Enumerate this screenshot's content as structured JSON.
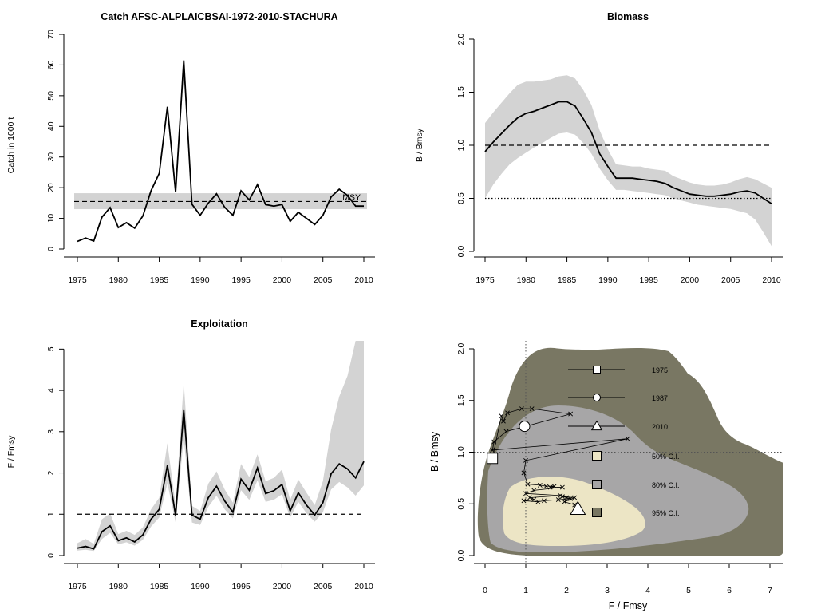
{
  "chart_data": [
    {
      "type": "line",
      "title": "Catch AFSC-ALPLAICBSAI-1972-2010-STACHURA",
      "xlabel": "",
      "ylabel": "Catch in 1000 t",
      "xlim": [
        1975,
        2010
      ],
      "ylim": [
        0,
        70
      ],
      "xticks": [
        1975,
        1980,
        1985,
        1990,
        1995,
        2000,
        2005,
        2010
      ],
      "yticks": [
        0,
        10,
        20,
        30,
        40,
        50,
        60,
        70
      ],
      "x": [
        1975,
        1976,
        1977,
        1978,
        1979,
        1980,
        1981,
        1982,
        1983,
        1984,
        1985,
        1986,
        1987,
        1988,
        1989,
        1990,
        1991,
        1992,
        1993,
        1994,
        1995,
        1996,
        1997,
        1998,
        1999,
        2000,
        2001,
        2002,
        2003,
        2004,
        2005,
        2006,
        2007,
        2008,
        2009,
        2010
      ],
      "series": [
        {
          "values": [
            2.5,
            3.6,
            2.6,
            10.4,
            13.5,
            7.0,
            8.6,
            6.8,
            10.8,
            19.0,
            24.7,
            46.4,
            18.5,
            61.5,
            14.6,
            11.0,
            15.0,
            18.0,
            13.6,
            11.0,
            19.0,
            16.0,
            21.0,
            14.5,
            14.0,
            14.5,
            9.0,
            12.0,
            10.0,
            8.0,
            11.0,
            17.0,
            19.5,
            17.5,
            14.0,
            14.0
          ]
        }
      ],
      "msy": {
        "label": "MSY",
        "value": 15.5,
        "lower": 13.0,
        "upper": 18.2
      }
    },
    {
      "type": "line",
      "title": "Biomass",
      "xlabel": "",
      "ylabel": "B / Bmsy",
      "xlim": [
        1975,
        2010
      ],
      "ylim": [
        0,
        2.0
      ],
      "xticks": [
        1975,
        1980,
        1985,
        1990,
        1995,
        2000,
        2005,
        2010
      ],
      "yticks": [
        "0.0",
        "0.5",
        "1.0",
        "1.5",
        "2.0"
      ],
      "x": [
        1975,
        1976,
        1977,
        1978,
        1979,
        1980,
        1981,
        1982,
        1983,
        1984,
        1985,
        1986,
        1987,
        1988,
        1989,
        1990,
        1991,
        1992,
        1993,
        1994,
        1995,
        1996,
        1997,
        1998,
        1999,
        2000,
        2001,
        2002,
        2003,
        2004,
        2005,
        2006,
        2007,
        2008,
        2009,
        2010
      ],
      "series": [
        {
          "values": [
            0.94,
            1.03,
            1.11,
            1.19,
            1.26,
            1.3,
            1.32,
            1.35,
            1.38,
            1.41,
            1.41,
            1.37,
            1.25,
            1.12,
            0.92,
            0.8,
            0.69,
            0.69,
            0.69,
            0.68,
            0.67,
            0.66,
            0.64,
            0.6,
            0.57,
            0.54,
            0.53,
            0.52,
            0.52,
            0.53,
            0.54,
            0.56,
            0.57,
            0.55,
            0.5,
            0.45
          ]
        }
      ],
      "ci_lower": [
        0.5,
        0.63,
        0.73,
        0.82,
        0.88,
        0.93,
        0.98,
        1.02,
        1.07,
        1.11,
        1.12,
        1.1,
        1.02,
        0.92,
        0.78,
        0.67,
        0.58,
        0.58,
        0.57,
        0.56,
        0.55,
        0.54,
        0.53,
        0.5,
        0.48,
        0.46,
        0.44,
        0.43,
        0.42,
        0.41,
        0.4,
        0.38,
        0.36,
        0.3,
        0.18,
        0.05
      ],
      "ci_upper": [
        1.21,
        1.31,
        1.4,
        1.49,
        1.57,
        1.6,
        1.6,
        1.61,
        1.62,
        1.65,
        1.66,
        1.63,
        1.52,
        1.38,
        1.14,
        0.96,
        0.82,
        0.81,
        0.8,
        0.8,
        0.78,
        0.77,
        0.76,
        0.71,
        0.68,
        0.65,
        0.63,
        0.62,
        0.62,
        0.63,
        0.65,
        0.68,
        0.7,
        0.68,
        0.64,
        0.6
      ],
      "reference_lines": [
        1.0,
        0.5
      ]
    },
    {
      "type": "line",
      "title": "Exploitation",
      "xlabel": "",
      "ylabel": "F / Fmsy",
      "xlim": [
        1975,
        2010
      ],
      "ylim": [
        0,
        5.2
      ],
      "xticks": [
        1975,
        1980,
        1985,
        1990,
        1995,
        2000,
        2005,
        2010
      ],
      "yticks": [
        0,
        1,
        2,
        3,
        4,
        5
      ],
      "x": [
        1975,
        1976,
        1977,
        1978,
        1979,
        1980,
        1981,
        1982,
        1983,
        1984,
        1985,
        1986,
        1987,
        1988,
        1989,
        1990,
        1991,
        1992,
        1993,
        1994,
        1995,
        1996,
        1997,
        1998,
        1999,
        2000,
        2001,
        2002,
        2003,
        2004,
        2005,
        2006,
        2007,
        2008,
        2009,
        2010
      ],
      "series": [
        {
          "values": [
            0.18,
            0.22,
            0.16,
            0.58,
            0.72,
            0.36,
            0.43,
            0.33,
            0.5,
            0.88,
            1.12,
            2.18,
            0.97,
            3.52,
            0.98,
            0.88,
            1.4,
            1.68,
            1.32,
            1.05,
            1.85,
            1.58,
            2.12,
            1.5,
            1.57,
            1.72,
            1.08,
            1.52,
            1.22,
            0.98,
            1.28,
            1.98,
            2.22,
            2.1,
            1.88,
            2.28
          ]
        }
      ],
      "ci_lower": [
        0.12,
        0.14,
        0.11,
        0.4,
        0.55,
        0.27,
        0.32,
        0.24,
        0.38,
        0.7,
        0.92,
        1.75,
        0.8,
        2.85,
        0.8,
        0.74,
        1.18,
        1.45,
        1.12,
        0.9,
        1.58,
        1.35,
        1.82,
        1.3,
        1.35,
        1.48,
        0.92,
        1.3,
        1.02,
        0.82,
        1.05,
        1.6,
        1.78,
        1.65,
        1.45,
        1.7
      ],
      "ci_upper": [
        0.3,
        0.4,
        0.28,
        0.88,
        1.02,
        0.52,
        0.6,
        0.5,
        0.68,
        1.12,
        1.4,
        2.72,
        1.22,
        4.2,
        1.2,
        1.08,
        1.74,
        2.04,
        1.6,
        1.28,
        2.22,
        1.9,
        2.45,
        1.8,
        1.88,
        2.08,
        1.35,
        1.84,
        1.52,
        1.22,
        1.8,
        3.05,
        3.85,
        4.35,
        5.2,
        5.2
      ],
      "reference_lines": [
        1.0
      ]
    },
    {
      "type": "scatter",
      "title": "",
      "xlabel": "F / Fmsy",
      "ylabel": "B / Bmsy",
      "xlim": [
        0,
        7
      ],
      "ylim": [
        0,
        2.0
      ],
      "xticks": [
        0,
        1,
        2,
        3,
        4,
        5,
        6,
        7
      ],
      "yticks": [
        "0.0",
        "0.5",
        "1.0",
        "1.5",
        "2.0"
      ],
      "reference_lines": {
        "x": 1.0,
        "y": 1.0
      },
      "regions": [
        {
          "name": "95% C.I.",
          "color": "#797763"
        },
        {
          "name": "80% C.I.",
          "color": "#a7a6a7"
        },
        {
          "name": "50% C.I.",
          "color": "#ece5c5"
        }
      ],
      "trajectory": [
        [
          0.18,
          0.94
        ],
        [
          0.4,
          1.35
        ],
        [
          0.45,
          1.3
        ],
        [
          0.55,
          1.38
        ],
        [
          0.9,
          1.42
        ],
        [
          1.15,
          1.42
        ],
        [
          2.1,
          1.37
        ],
        [
          1.0,
          1.25
        ],
        [
          0.52,
          1.2
        ],
        [
          0.22,
          1.1
        ],
        [
          0.18,
          1.02
        ],
        [
          3.5,
          1.13
        ],
        [
          1.0,
          0.92
        ],
        [
          0.95,
          0.8
        ],
        [
          1.05,
          0.69
        ],
        [
          1.35,
          0.68
        ],
        [
          1.5,
          0.67
        ],
        [
          1.7,
          0.67
        ],
        [
          1.6,
          0.66
        ],
        [
          1.9,
          0.66
        ],
        [
          1.2,
          0.63
        ],
        [
          1.0,
          0.6
        ],
        [
          1.85,
          0.58
        ],
        [
          1.1,
          0.56
        ],
        [
          1.2,
          0.54
        ],
        [
          0.95,
          0.53
        ],
        [
          1.3,
          0.52
        ],
        [
          1.45,
          0.53
        ],
        [
          1.8,
          0.54
        ],
        [
          2.1,
          0.55
        ],
        [
          2.0,
          0.56
        ],
        [
          1.9,
          0.57
        ],
        [
          2.2,
          0.56
        ],
        [
          1.95,
          0.52
        ],
        [
          2.2,
          0.49
        ],
        [
          2.28,
          0.45
        ]
      ],
      "markers": [
        {
          "label": "1975",
          "shape": "square",
          "F": 0.18,
          "B": 0.94,
          "ci": [
            1.6,
            3.5
          ]
        },
        {
          "label": "1987",
          "shape": "circle",
          "F": 0.97,
          "B": 1.25,
          "ci": [
            1.6,
            3.4
          ]
        },
        {
          "label": "2010",
          "shape": "triangle",
          "F": 2.28,
          "B": 0.45,
          "ci": [
            1.6,
            3.4
          ]
        }
      ],
      "legend_position": "right"
    }
  ]
}
